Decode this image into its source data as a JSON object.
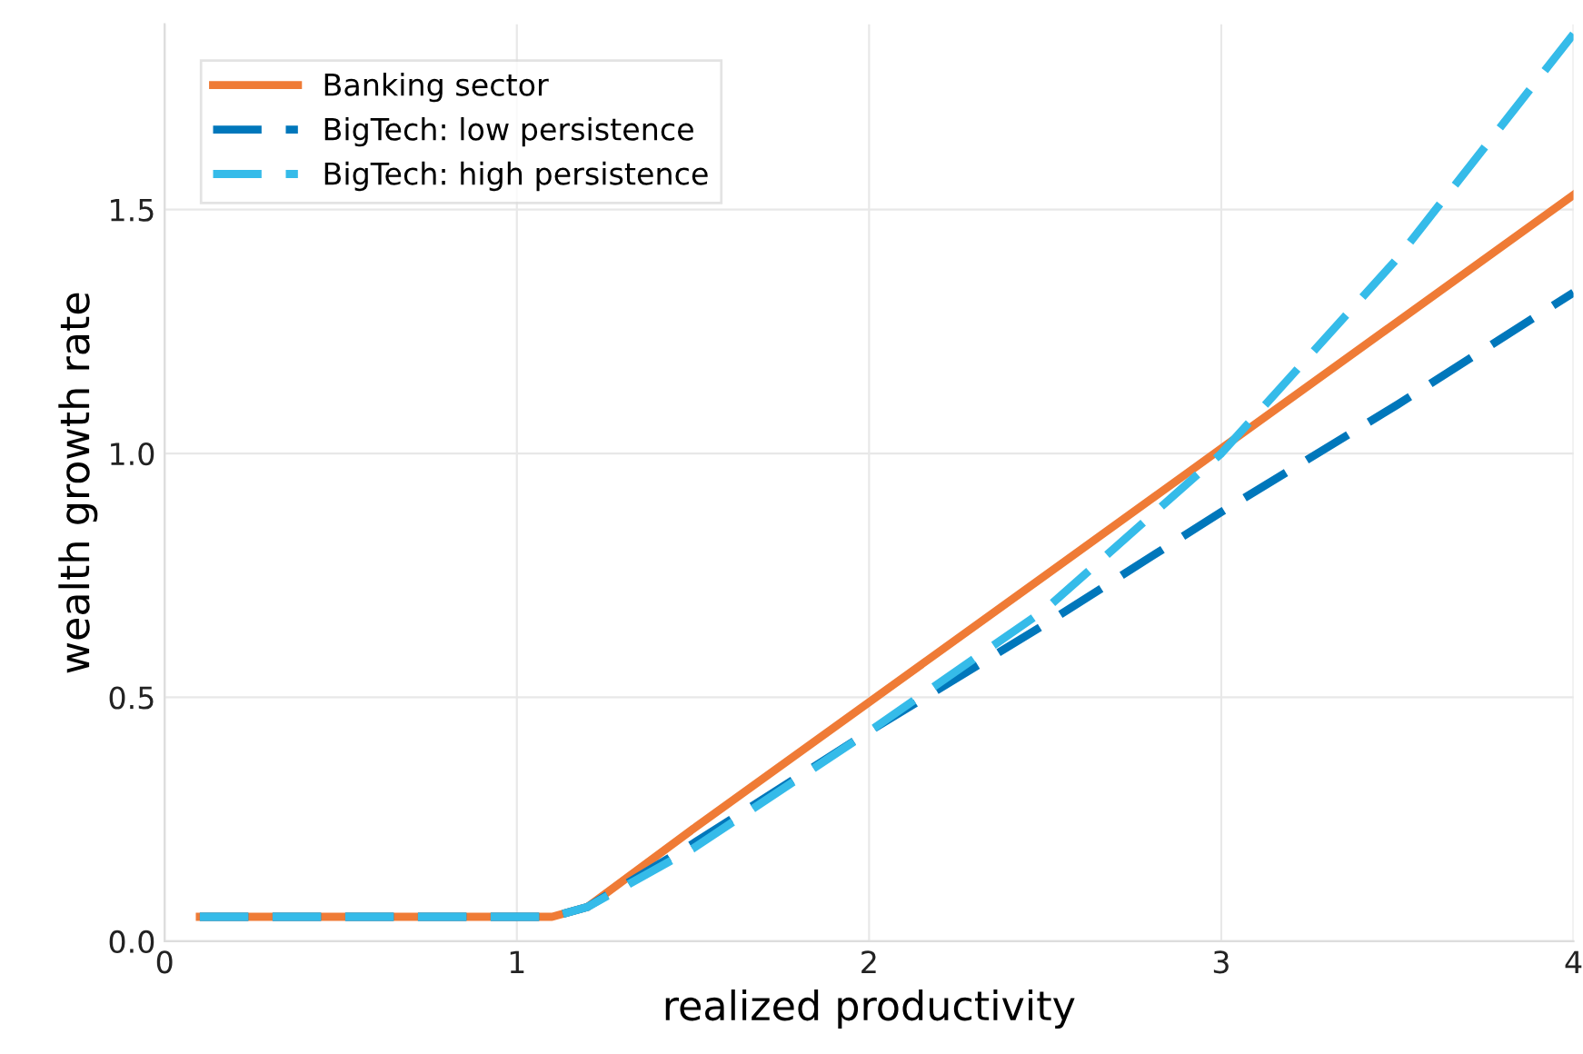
{
  "chart_data": {
    "type": "line",
    "xlabel": "realized productivity",
    "ylabel": "wealth growth rate",
    "x": [
      0.1,
      1.1,
      1.2,
      1.5,
      2,
      2.5,
      3,
      3.5,
      4
    ],
    "series": [
      {
        "name": "Banking sector",
        "color": "#ef7b36",
        "line_style": "solid",
        "values": [
          0.05,
          0.05,
          0.07,
          0.23,
          0.49,
          0.75,
          1.01,
          1.27,
          1.53
        ]
      },
      {
        "name": "BigTech: low persistence",
        "color": "#0077bb",
        "line_style": "dashed",
        "values": [
          0.05,
          0.05,
          0.07,
          0.2,
          0.43,
          0.65,
          0.88,
          1.1,
          1.33
        ]
      },
      {
        "name": "BigTech: high persistence",
        "color": "#35bbe9",
        "line_style": "dashed",
        "values": [
          0.05,
          0.05,
          0.07,
          0.19,
          0.43,
          0.68,
          1.0,
          1.4,
          1.86
        ]
      }
    ],
    "xlim": [
      0,
      4
    ],
    "ylim": [
      0,
      1.88
    ],
    "xticks": [
      0,
      1,
      2,
      3,
      4
    ],
    "yticks": [
      {
        "value": 0,
        "label": "0.0"
      },
      {
        "value": 0.5,
        "label": "0.5"
      },
      {
        "value": 1,
        "label": "1.0"
      },
      {
        "value": 1.5,
        "label": "1.5"
      }
    ],
    "grid": true,
    "legend": "top left",
    "marker": "none"
  }
}
